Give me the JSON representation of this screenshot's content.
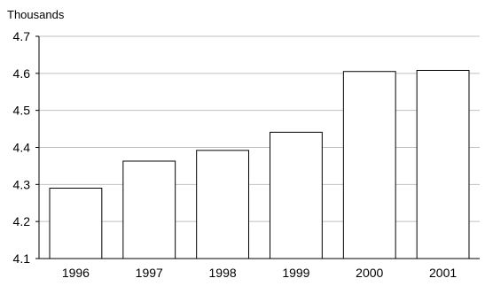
{
  "chart_data": {
    "type": "bar",
    "unit_label": "Thousands",
    "categories": [
      "1996",
      "1997",
      "1998",
      "1999",
      "2000",
      "2001"
    ],
    "values": [
      4.29,
      4.363,
      4.392,
      4.441,
      4.605,
      4.608
    ],
    "ylim": [
      4.1,
      4.7
    ],
    "yticks": [
      "4.1",
      "4.2",
      "4.3",
      "4.4",
      "4.5",
      "4.6",
      "4.7"
    ],
    "grid": true,
    "legend": "none",
    "colors": {
      "bar_fill": "#ffffff",
      "bar_stroke": "#000000",
      "grid": "#c0c0c0",
      "axis": "#000000"
    }
  }
}
